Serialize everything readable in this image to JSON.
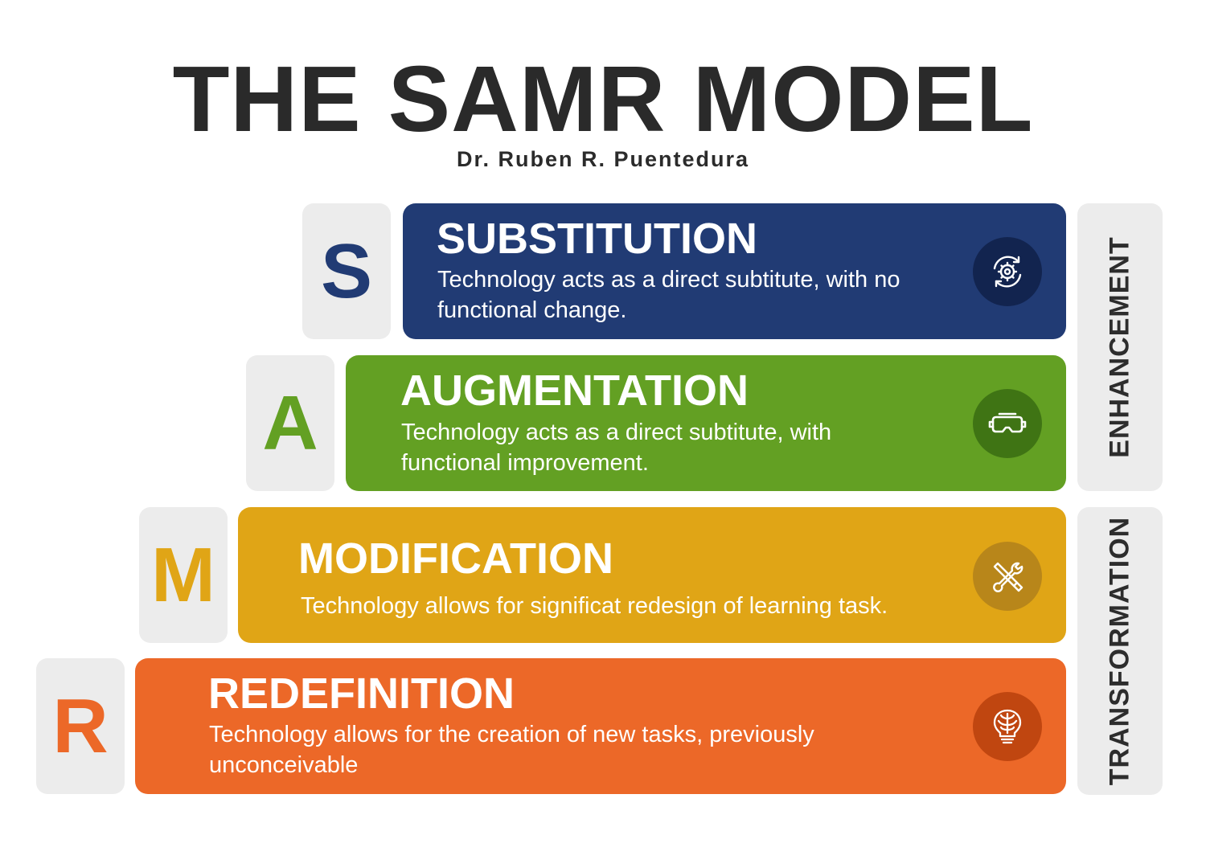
{
  "title": "THE SAMR MODEL",
  "subtitle": "Dr. Ruben R. Puentedura",
  "levels": [
    {
      "letter": "S",
      "title": "SUBSTITUTION",
      "description": "Technology acts as a direct subtitute, with no functional change.",
      "color": "#213b74",
      "icon_bg": "#12244f",
      "icon": "gear-cycle-icon"
    },
    {
      "letter": "A",
      "title": "AUGMENTATION",
      "description": "Technology acts as a direct subtitute, with functional  improvement.",
      "color": "#63a023",
      "icon_bg": "#3f7414",
      "icon": "vr-headset-icon"
    },
    {
      "letter": "M",
      "title": "MODIFICATION",
      "description": "Technology allows for significat redesign of learning task.",
      "color": "#e0a516",
      "icon_bg": "#b8861a",
      "icon": "tools-icon"
    },
    {
      "letter": "R",
      "title": "REDEFINITION",
      "description": "Technology allows for the creation of new tasks,  previously unconceivable",
      "color": "#ec6828",
      "icon_bg": "#c04610",
      "icon": "brain-bulb-icon"
    }
  ],
  "groups": {
    "enhancement": "ENHANCEMENT",
    "transformation": "TRANSFORMATION"
  }
}
